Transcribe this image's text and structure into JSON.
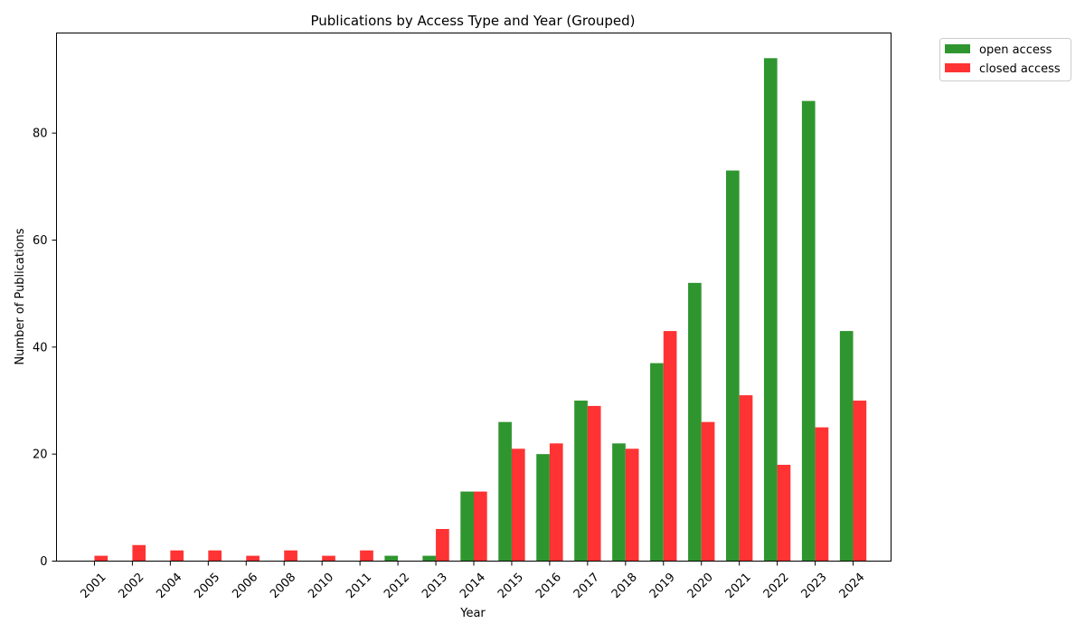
{
  "chart_data": {
    "type": "bar",
    "title": "Publications by Access Type and Year (Grouped)",
    "xlabel": "Year",
    "ylabel": "Number of Publications",
    "categories": [
      "2001",
      "2002",
      "2004",
      "2005",
      "2006",
      "2008",
      "2010",
      "2011",
      "2012",
      "2013",
      "2014",
      "2015",
      "2016",
      "2017",
      "2018",
      "2019",
      "2020",
      "2021",
      "2022",
      "2023",
      "2024"
    ],
    "series": [
      {
        "name": "open access",
        "color": "#2f962f",
        "values": [
          0,
          0,
          0,
          0,
          0,
          0,
          0,
          0,
          1,
          1,
          13,
          26,
          20,
          30,
          22,
          37,
          52,
          73,
          94,
          86,
          43
        ]
      },
      {
        "name": "closed access",
        "color": "#ff3333",
        "values": [
          1,
          3,
          2,
          2,
          1,
          2,
          1,
          2,
          0,
          6,
          13,
          21,
          22,
          29,
          21,
          43,
          26,
          31,
          18,
          25,
          30
        ]
      }
    ],
    "ylim": [
      0,
      98.7
    ],
    "yticks": [
      0,
      20,
      40,
      60,
      80
    ],
    "grid": false,
    "legend_position": "outside-top-right"
  }
}
